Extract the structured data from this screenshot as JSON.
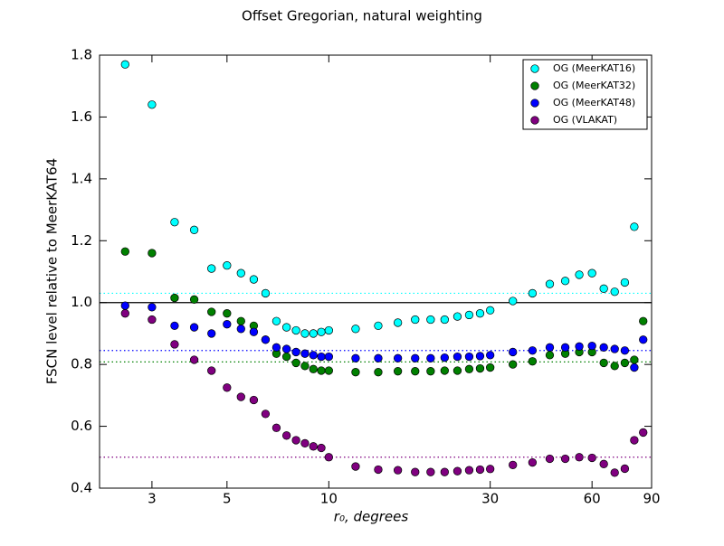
{
  "chart_data": {
    "type": "scatter",
    "title": "Offset Gregorian, natural weighting",
    "x_label": "r₀, degrees",
    "y_label": "FSCN level relative to MeerKAT64",
    "x_scale": "log",
    "x": [
      2.5,
      3,
      3.5,
      4,
      4.5,
      5,
      5.5,
      6,
      6.5,
      7,
      7.5,
      8,
      8.5,
      9,
      9.5,
      10,
      12,
      14,
      16,
      18,
      20,
      22,
      24,
      26,
      28,
      30,
      35,
      40,
      45,
      50,
      55,
      60,
      65,
      70,
      75,
      80,
      85
    ],
    "xlim": [
      2.1,
      90
    ],
    "xticks": [
      3,
      5,
      10,
      30,
      60,
      90
    ],
    "ylim": [
      0.4,
      1.8
    ],
    "yticks": [
      0.4,
      0.6,
      0.8,
      {
        "value": 1.0,
        "label": "1.0"
      },
      1.2,
      1.4,
      1.6,
      1.8
    ],
    "baseline": 1.0,
    "baseline_color": "#000000",
    "legend": "upper right",
    "series": [
      {
        "name": "OG (MeerKAT16)",
        "color": "#00ffff",
        "reference": 1.03,
        "values": [
          1.77,
          1.64,
          1.26,
          1.235,
          1.11,
          1.12,
          1.095,
          1.075,
          1.03,
          0.94,
          0.92,
          0.91,
          0.9,
          0.9,
          0.905,
          0.91,
          0.915,
          0.925,
          0.935,
          0.945,
          0.945,
          0.945,
          0.955,
          0.96,
          0.965,
          0.975,
          1.005,
          1.03,
          1.06,
          1.07,
          1.09,
          1.095,
          1.045,
          1.035,
          1.065,
          1.245,
          null
        ]
      },
      {
        "name": "OG (MeerKAT32)",
        "color": "#008000",
        "reference": 0.808,
        "values": [
          1.165,
          1.16,
          1.015,
          1.01,
          0.97,
          0.965,
          0.94,
          0.925,
          0.88,
          0.835,
          0.825,
          0.805,
          0.795,
          0.785,
          0.78,
          0.78,
          0.775,
          0.775,
          0.778,
          0.778,
          0.778,
          0.78,
          0.78,
          0.785,
          0.787,
          0.79,
          0.8,
          0.81,
          0.83,
          0.835,
          0.84,
          0.84,
          0.805,
          0.795,
          0.805,
          0.815,
          0.94
        ]
      },
      {
        "name": "OG (MeerKAT48)",
        "color": "#0000ff",
        "reference": 0.845,
        "values": [
          0.99,
          0.985,
          0.925,
          0.92,
          0.9,
          0.93,
          0.915,
          0.905,
          0.88,
          0.855,
          0.85,
          0.84,
          0.835,
          0.83,
          0.825,
          0.825,
          0.82,
          0.82,
          0.82,
          0.82,
          0.82,
          0.822,
          0.825,
          0.825,
          0.827,
          0.83,
          0.84,
          0.845,
          0.855,
          0.855,
          0.858,
          0.86,
          0.855,
          0.85,
          0.845,
          0.79,
          0.88
        ]
      },
      {
        "name": "OG (VLAKAT)",
        "color": "#800080",
        "reference": 0.5,
        "values": [
          0.965,
          0.945,
          0.865,
          0.815,
          0.78,
          0.725,
          0.695,
          0.685,
          0.64,
          0.595,
          0.57,
          0.555,
          0.545,
          0.535,
          0.53,
          0.5,
          0.47,
          0.46,
          0.458,
          0.452,
          0.452,
          0.452,
          0.455,
          0.458,
          0.46,
          0.462,
          0.475,
          0.483,
          0.495,
          0.495,
          0.5,
          0.498,
          0.478,
          0.45,
          0.463,
          0.555,
          0.58
        ]
      }
    ]
  }
}
